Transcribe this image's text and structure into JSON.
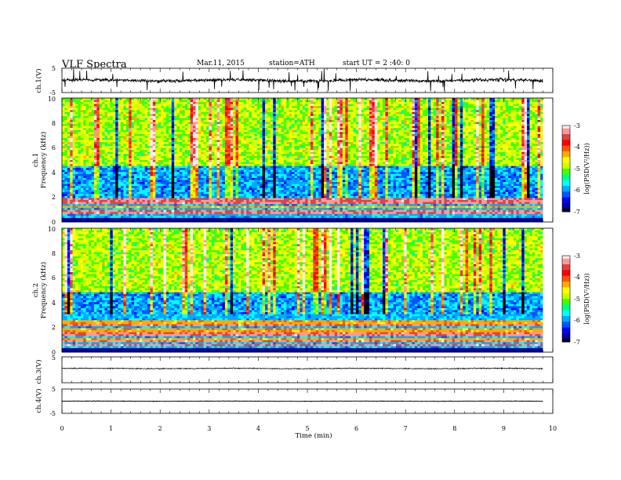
{
  "header": {
    "title": "VLF Spectra",
    "date": "Mar.11, 2015",
    "station": "station=ATH",
    "start_ut": "start UT = 2 :40: 0"
  },
  "colors": {
    "palette": [
      "#000000",
      "#000099",
      "#0000ff",
      "#0055ff",
      "#00aaff",
      "#00ffff",
      "#00ff88",
      "#44ff00",
      "#ccff00",
      "#ffff00",
      "#ffaa00",
      "#ff5500",
      "#ff0000",
      "#dd4444",
      "#ff9999",
      "#ffeeee"
    ]
  },
  "chart_data": [
    {
      "type": "line",
      "panel": "ch1-waveform",
      "ylabel": "ch.1(V)",
      "ylim": [
        -5,
        5
      ],
      "yticks": [
        5,
        -5
      ],
      "x_range_min": [
        0,
        9.8
      ],
      "baseline_v": 0.0,
      "noise_amplitude_v": 1.0,
      "spike_amplitude_v": 4.5
    },
    {
      "type": "heatmap",
      "panel": "ch1-spectrogram",
      "ylabel_top": "ch.1",
      "ylabel": "Frequency (kHz)",
      "ylim": [
        0,
        10
      ],
      "yticks": [
        0,
        2,
        4,
        6,
        8,
        10
      ],
      "x_range_min": [
        0,
        9.8
      ],
      "colorbar": {
        "label": "log(PSD(V²/Hz))",
        "range": [
          -7,
          -3
        ],
        "ticks": [
          -3,
          -4,
          -5,
          -6,
          -7
        ]
      },
      "dark_band_khz": [
        2.0,
        4.5
      ],
      "lines_band_khz": [
        0.3,
        2.0
      ]
    },
    {
      "type": "heatmap",
      "panel": "ch2-spectrogram",
      "ylabel_top": "ch.2",
      "ylabel": "Frequency (kHz)",
      "ylim": [
        0,
        10
      ],
      "yticks": [
        0,
        2,
        4,
        6,
        8,
        10
      ],
      "x_range_min": [
        0,
        9.8
      ],
      "colorbar": {
        "label": "log(PSD(V²/Hz))",
        "range": [
          -7,
          -3
        ],
        "ticks": [
          -3,
          -4,
          -5,
          -6,
          -7
        ]
      },
      "dark_band_khz": [
        3.0,
        4.8
      ],
      "lines_band_khz": [
        0.2,
        3.0
      ]
    },
    {
      "type": "line",
      "panel": "ch3-waveform",
      "ylabel": "ch.3(V)",
      "ylim": [
        -5,
        5
      ],
      "yticks": [
        5
      ],
      "x_range_min": [
        0,
        9.8
      ],
      "baseline_v": 0.5,
      "noise_amplitude_v": 0.3,
      "spike_amplitude_v": 0.0
    },
    {
      "type": "line",
      "panel": "ch4-waveform",
      "ylabel": "ch.4(V)",
      "ylim": [
        -5,
        5
      ],
      "yticks": [
        5,
        -5
      ],
      "x_range_min": [
        0,
        9.8
      ],
      "baseline_v": 0.0,
      "noise_amplitude_v": 0.15,
      "spike_amplitude_v": 0.0
    }
  ],
  "x_axis": {
    "label": "Time (min)",
    "range": [
      0,
      10
    ],
    "ticks": [
      0,
      1,
      2,
      3,
      4,
      5,
      6,
      7,
      8,
      9,
      10
    ]
  }
}
